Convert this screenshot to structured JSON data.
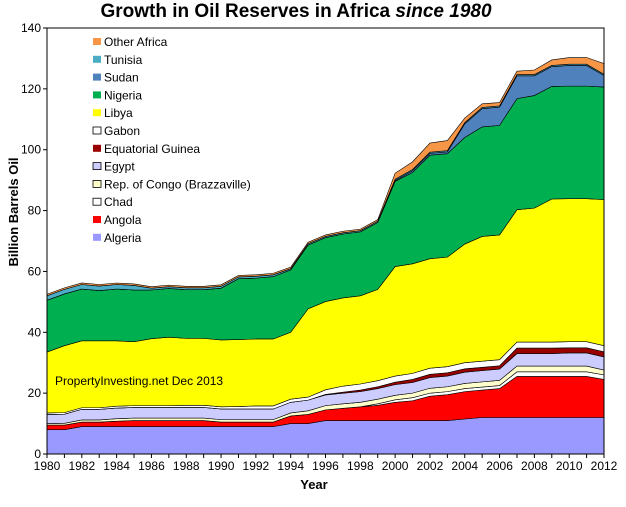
{
  "chart_data": {
    "type": "area",
    "stacked": true,
    "title_main": "Growth in Oil Reserves in Africa",
    "title_italic": "since 1980",
    "xlabel": "Year",
    "ylabel": "Billion Barrels Oil",
    "xlim": [
      1980,
      2012
    ],
    "ylim": [
      0,
      140
    ],
    "x_ticks": [
      1980,
      1982,
      1984,
      1986,
      1988,
      1990,
      1992,
      1994,
      1996,
      1998,
      2000,
      2002,
      2004,
      2006,
      2008,
      2010,
      2012
    ],
    "y_ticks": [
      0,
      20,
      40,
      60,
      80,
      100,
      120,
      140
    ],
    "grid": false,
    "legend_position": "top-left",
    "annotation": "PropertyInvesting.net  Dec 2013",
    "x": [
      1980,
      1981,
      1982,
      1983,
      1984,
      1985,
      1986,
      1987,
      1988,
      1989,
      1990,
      1991,
      1992,
      1993,
      1994,
      1995,
      1996,
      1997,
      1998,
      1999,
      2000,
      2001,
      2002,
      2003,
      2004,
      2005,
      2006,
      2007,
      2008,
      2009,
      2010,
      2011,
      2012
    ],
    "series": [
      {
        "name": "Algeria",
        "color": "#9999ff",
        "values": [
          8,
          8,
          9,
          9,
          9,
          9,
          9,
          9,
          9,
          9,
          9,
          9,
          9,
          9,
          10,
          10,
          11,
          11,
          11,
          11,
          11,
          11,
          11,
          11,
          11.5,
          12,
          12,
          12,
          12,
          12,
          12,
          12,
          12
        ]
      },
      {
        "name": "Angola",
        "color": "#ff0000",
        "values": [
          1.5,
          1.5,
          1.5,
          1.5,
          1.8,
          2,
          2,
          2,
          2,
          2,
          1.5,
          1.5,
          1.5,
          1.5,
          2.5,
          3,
          3.5,
          4,
          4.5,
          5,
          6,
          6.5,
          8,
          8.5,
          9,
          9,
          9.5,
          13.5,
          13.5,
          13.5,
          13.5,
          13.5,
          12.5
        ]
      },
      {
        "name": "Chad",
        "color": "#ffffff",
        "values": [
          0,
          0,
          0,
          0,
          0,
          0,
          0,
          0,
          0,
          0,
          0,
          0,
          0,
          0,
          0,
          0,
          0,
          0,
          0,
          0.5,
          0.8,
          1,
          1,
          1,
          1,
          1,
          1,
          1.5,
          1.5,
          1.5,
          1.5,
          1.5,
          1.5
        ]
      },
      {
        "name": "Rep. of Congo (Brazzaville)",
        "color": "#ffffcc",
        "values": [
          0.5,
          0.6,
          0.7,
          0.7,
          0.8,
          0.8,
          0.8,
          0.8,
          0.8,
          0.8,
          0.8,
          0.8,
          0.8,
          0.8,
          1,
          1.2,
          1.4,
          1.5,
          1.5,
          1.5,
          1.5,
          1.5,
          1.6,
          1.6,
          1.7,
          1.7,
          1.7,
          1.9,
          1.9,
          1.9,
          1.9,
          1.9,
          1.6
        ]
      },
      {
        "name": "Egypt",
        "color": "#ccccff",
        "values": [
          3,
          3,
          3.5,
          3.5,
          3.5,
          3.5,
          3.5,
          3.5,
          3.5,
          3.5,
          3.5,
          3.5,
          3.5,
          3.5,
          3.5,
          3.5,
          3.5,
          3.5,
          3.5,
          3.5,
          3.5,
          3.5,
          3.5,
          3.5,
          3.7,
          3.7,
          3.7,
          4.1,
          4.1,
          4.1,
          4.3,
          4.3,
          4.3
        ]
      },
      {
        "name": "Equatorial Guinea",
        "color": "#990000",
        "values": [
          0,
          0,
          0,
          0,
          0,
          0,
          0,
          0,
          0,
          0,
          0,
          0,
          0,
          0,
          0,
          0,
          0.2,
          0.3,
          0.5,
          0.6,
          0.8,
          1,
          1.1,
          1.1,
          1.1,
          1.1,
          1.1,
          1.8,
          1.8,
          1.8,
          1.7,
          1.7,
          1.7
        ]
      },
      {
        "name": "Gabon",
        "color": "#ffffff",
        "values": [
          0.5,
          0.5,
          0.5,
          0.5,
          0.6,
          0.6,
          0.6,
          0.6,
          0.7,
          0.7,
          0.7,
          0.8,
          1,
          1,
          1,
          1,
          1.5,
          2,
          2,
          2,
          2,
          2,
          2,
          2,
          2,
          2,
          2,
          2,
          2,
          2,
          2,
          2,
          2
        ]
      },
      {
        "name": "Libya",
        "color": "#ffff00",
        "values": [
          20,
          22,
          22,
          22,
          21.5,
          21,
          22,
          22.5,
          22,
          22,
          22,
          22,
          22,
          22,
          22,
          29,
          29,
          29,
          29,
          30,
          36,
          36,
          36,
          36,
          39,
          41,
          41,
          43.5,
          44,
          47,
          47,
          47,
          48
        ]
      },
      {
        "name": "Nigeria",
        "color": "#00b050",
        "values": [
          17,
          17,
          17,
          16.5,
          17,
          17,
          16,
          16,
          16,
          16,
          17,
          20,
          20,
          20.5,
          20.5,
          21,
          21,
          21,
          21,
          22,
          28,
          30,
          34,
          34,
          35,
          36,
          36,
          36.5,
          37,
          37,
          37,
          37,
          37
        ]
      },
      {
        "name": "Sudan",
        "color": "#4f81bd",
        "values": [
          0,
          0,
          0,
          0,
          0,
          0,
          0,
          0,
          0,
          0,
          0,
          0,
          0,
          0,
          0,
          0,
          0,
          0,
          0,
          0,
          0.3,
          0.6,
          0.6,
          0.6,
          4.5,
          6,
          6,
          7.5,
          6.5,
          6.5,
          6.8,
          6.8,
          3.8
        ]
      },
      {
        "name": "Tunisia",
        "color": "#4bacc6",
        "values": [
          1.5,
          1.5,
          1.5,
          1.5,
          1.5,
          1.5,
          0.6,
          0.6,
          0.6,
          0.6,
          0.6,
          0.6,
          0.6,
          0.6,
          0.4,
          0.4,
          0.4,
          0.4,
          0.4,
          0.4,
          0.4,
          0.4,
          0.4,
          0.4,
          0.4,
          0.4,
          0.4,
          0.4,
          0.4,
          0.4,
          0.4,
          0.4,
          0.4
        ]
      },
      {
        "name": "Other Africa",
        "color": "#f79646",
        "values": [
          0.5,
          0.5,
          0.5,
          0.5,
          0.5,
          0.5,
          0.5,
          0.5,
          0.5,
          0.5,
          0.5,
          0.5,
          0.5,
          0.5,
          0.5,
          0.5,
          0.5,
          0.5,
          0.5,
          0.5,
          2,
          2.5,
          3,
          3.3,
          1.5,
          1.2,
          1.1,
          1.1,
          1.5,
          1.8,
          2.2,
          2.2,
          3.5
        ]
      }
    ]
  }
}
